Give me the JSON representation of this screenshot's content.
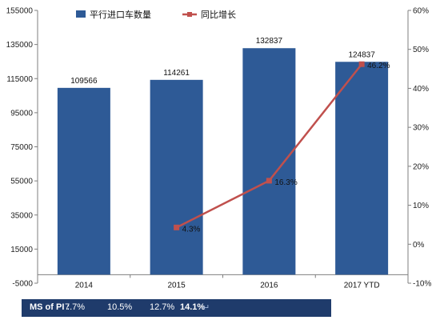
{
  "chart_data": {
    "type": "bar",
    "categories": [
      "2014",
      "2015",
      "2016",
      "2017 YTD"
    ],
    "series": [
      {
        "name": "平行进口车数量",
        "kind": "bar",
        "axis": "left",
        "color": "#2e5a96",
        "values": [
          109566,
          114261,
          132837,
          124837
        ],
        "labels": [
          "109566",
          "114261",
          "132837",
          "124837"
        ]
      },
      {
        "name": "同比增长",
        "kind": "line",
        "axis": "right",
        "color": "#c0504d",
        "values": [
          null,
          4.3,
          16.3,
          46.2
        ],
        "labels": [
          "",
          "4.3%",
          "16.3%",
          "46.2%"
        ]
      }
    ],
    "left_axis": {
      "ylim": [
        -5000,
        155000
      ],
      "ticks": [
        -5000,
        15000,
        35000,
        55000,
        75000,
        95000,
        115000,
        135000,
        155000
      ],
      "tick_labels": [
        "-5000",
        "15000",
        "35000",
        "55000",
        "75000",
        "95000",
        "115000",
        "135000",
        "155000"
      ]
    },
    "right_axis": {
      "ylim": [
        -10,
        60
      ],
      "ticks": [
        -10,
        0,
        10,
        20,
        30,
        40,
        50,
        60
      ],
      "tick_labels": [
        "-10%",
        "0%",
        "10%",
        "20%",
        "30%",
        "40%",
        "50%",
        "60%"
      ]
    },
    "grid": false,
    "legend": "top-left"
  },
  "footer": {
    "prefix": "MS of PI :",
    "values": [
      "7.7%",
      "10.5%",
      "12.7%",
      "14.1%"
    ],
    "end_mark": "↵"
  }
}
